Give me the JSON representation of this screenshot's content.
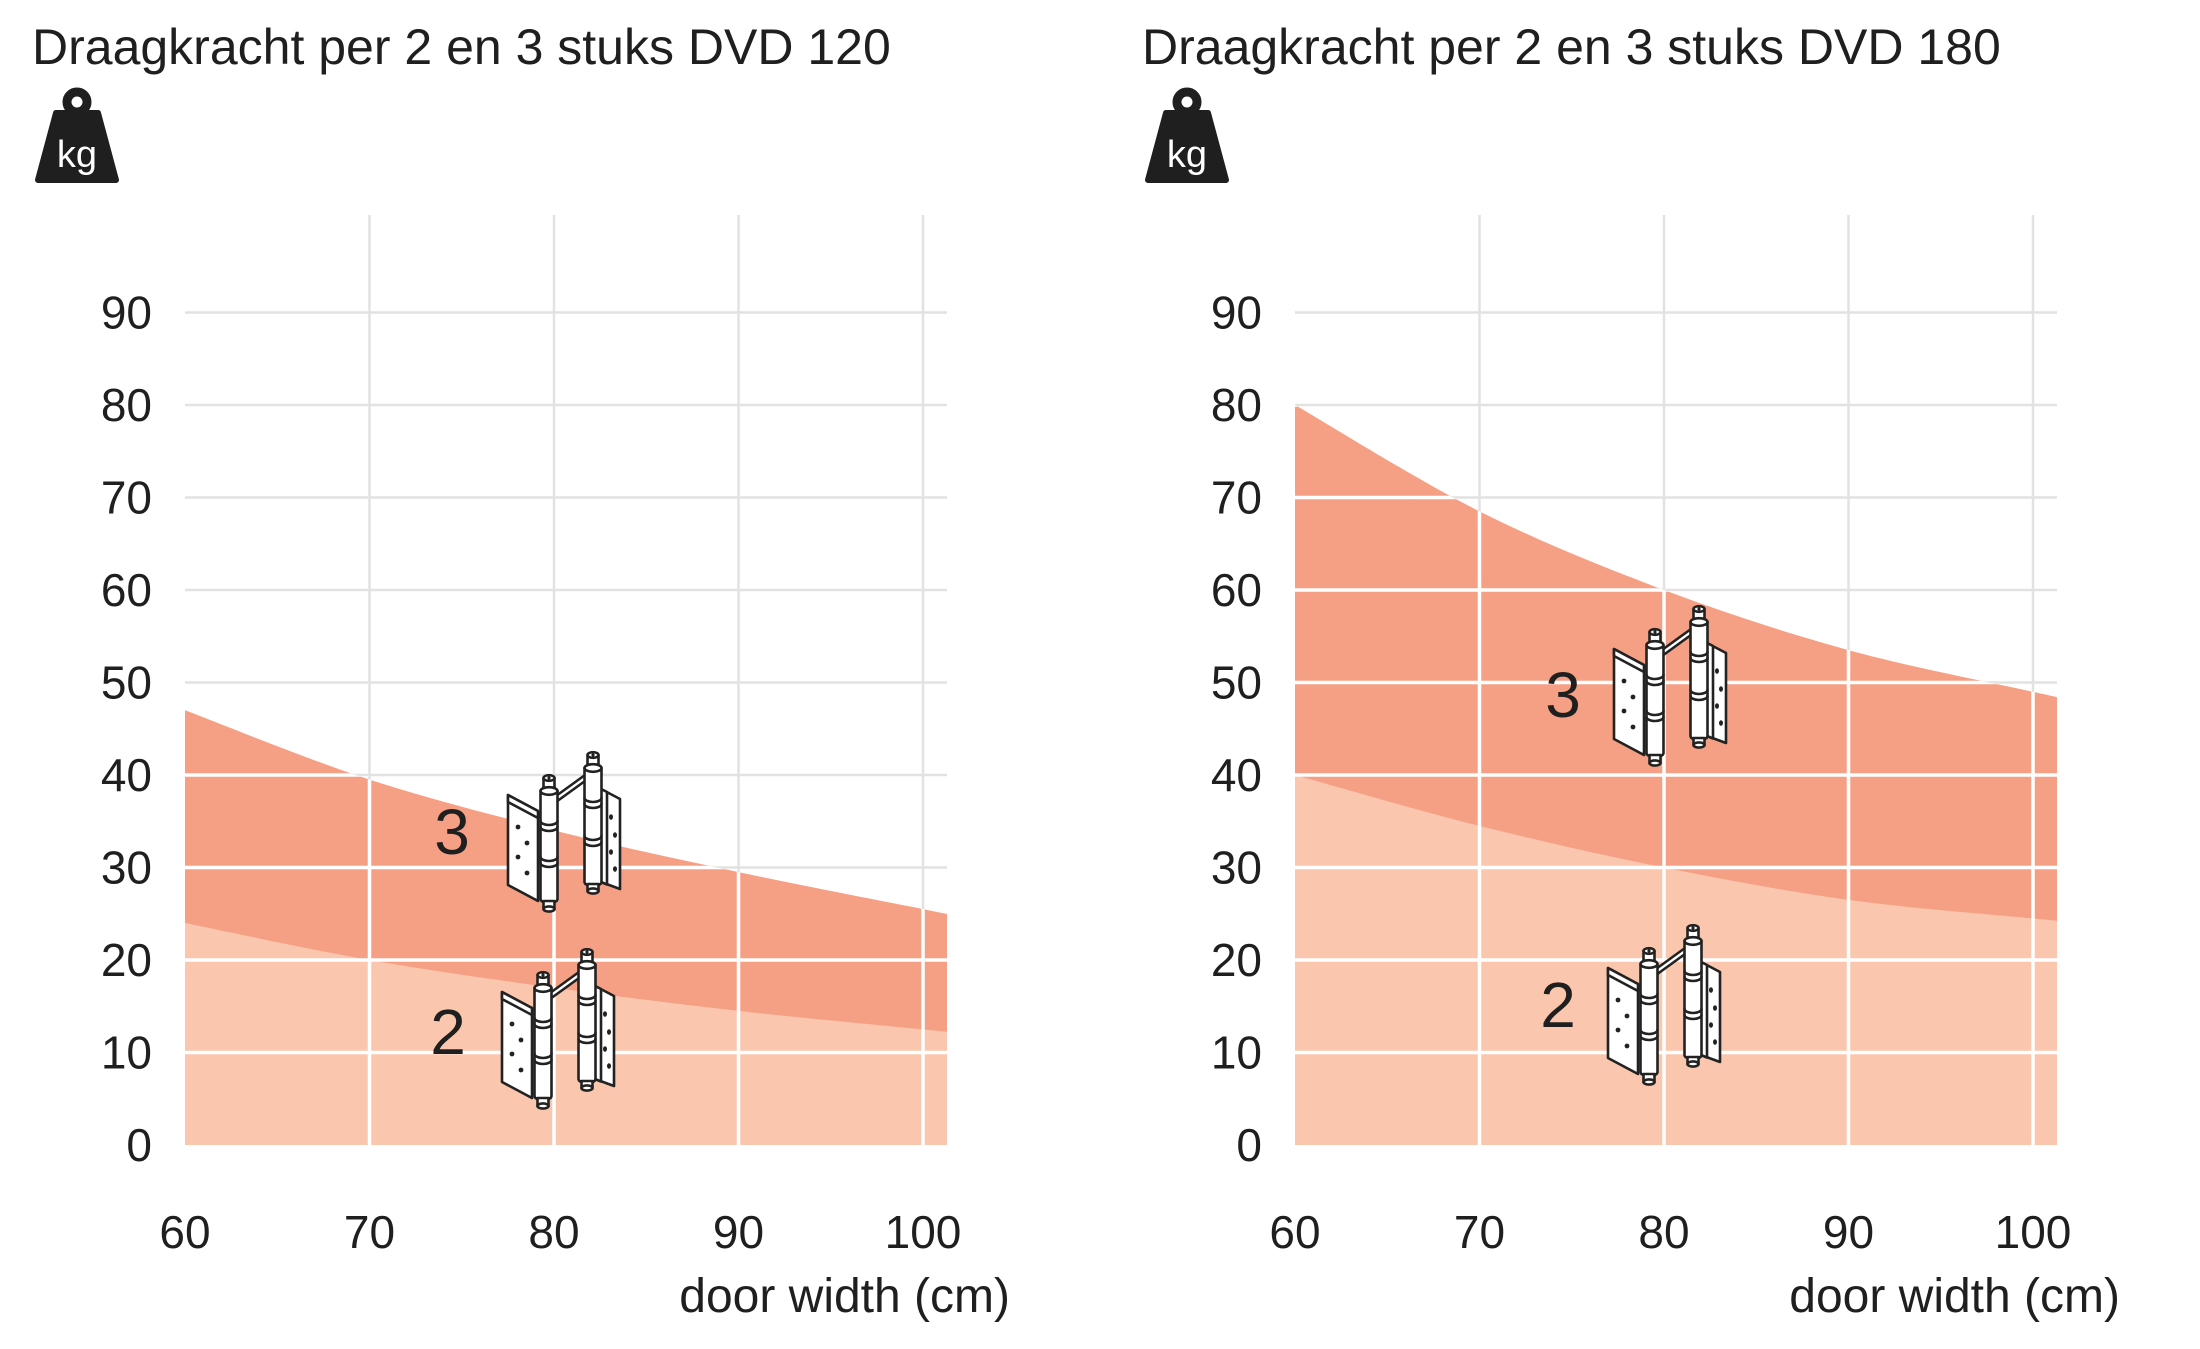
{
  "page": {
    "background": "#ffffff"
  },
  "colors": {
    "series_3_fill": "#f5a084",
    "series_2_fill": "#fac6ae",
    "grid_outside_area": "#e2e2e2",
    "grid_inside_area": "#ffffff",
    "text": "#1f1f1f",
    "line_art": "#222222"
  },
  "icons": {
    "weight": "kg-weight-icon",
    "hinge": "double-action-hinge-icon"
  },
  "charts": [
    {
      "title": "Draagkracht per 2 en 3 stuks DVD 120",
      "kg_label": "kg",
      "xlabel": "door width (cm)",
      "y_ticks": [
        "90",
        "80",
        "70",
        "60",
        "50",
        "40",
        "30",
        "20",
        "10",
        "0"
      ],
      "x_ticks": [
        "60",
        "70",
        "80",
        "90",
        "100"
      ]
    },
    {
      "title": "Draagkracht per 2 en 3 stuks DVD 180",
      "kg_label": "kg",
      "xlabel": "door width (cm)",
      "y_ticks": [
        "90",
        "80",
        "70",
        "60",
        "50",
        "40",
        "30",
        "20",
        "10",
        "0"
      ],
      "x_ticks": [
        "60",
        "70",
        "80",
        "90",
        "100"
      ]
    }
  ],
  "chart_data": [
    {
      "type": "area",
      "title": "Draagkracht per 2 en 3 stuks DVD 120",
      "xlabel": "door width (cm)",
      "ylabel": "kg",
      "x": [
        60,
        70,
        80,
        90,
        100
      ],
      "xlim": [
        60,
        101.3
      ],
      "ylim": [
        0,
        100
      ],
      "grid": true,
      "legend": "numerals beside hinge icons inside plot",
      "series": [
        {
          "name": "3 stuks (3 hinges)",
          "label": "3",
          "values": [
            47,
            39.5,
            34,
            29.5,
            25.5
          ],
          "color": "#f5a084"
        },
        {
          "name": "2 stuks (2 hinges)",
          "label": "2",
          "values": [
            24,
            20,
            17,
            14.5,
            12.5
          ],
          "color": "#fac6ae"
        }
      ]
    },
    {
      "type": "area",
      "title": "Draagkracht per 2 en 3 stuks DVD 180",
      "xlabel": "door width (cm)",
      "ylabel": "kg",
      "x": [
        60,
        70,
        80,
        90,
        100
      ],
      "xlim": [
        60,
        101.3
      ],
      "ylim": [
        0,
        100
      ],
      "grid": true,
      "legend": "numerals beside hinge icons inside plot",
      "series": [
        {
          "name": "3 stuks (3 hinges)",
          "label": "3",
          "values": [
            80,
            68.5,
            60,
            53.5,
            49
          ],
          "color": "#f5a084"
        },
        {
          "name": "2 stuks (2 hinges)",
          "label": "2",
          "values": [
            40,
            34.5,
            30,
            26.5,
            24.5
          ],
          "color": "#fac6ae"
        }
      ]
    }
  ]
}
